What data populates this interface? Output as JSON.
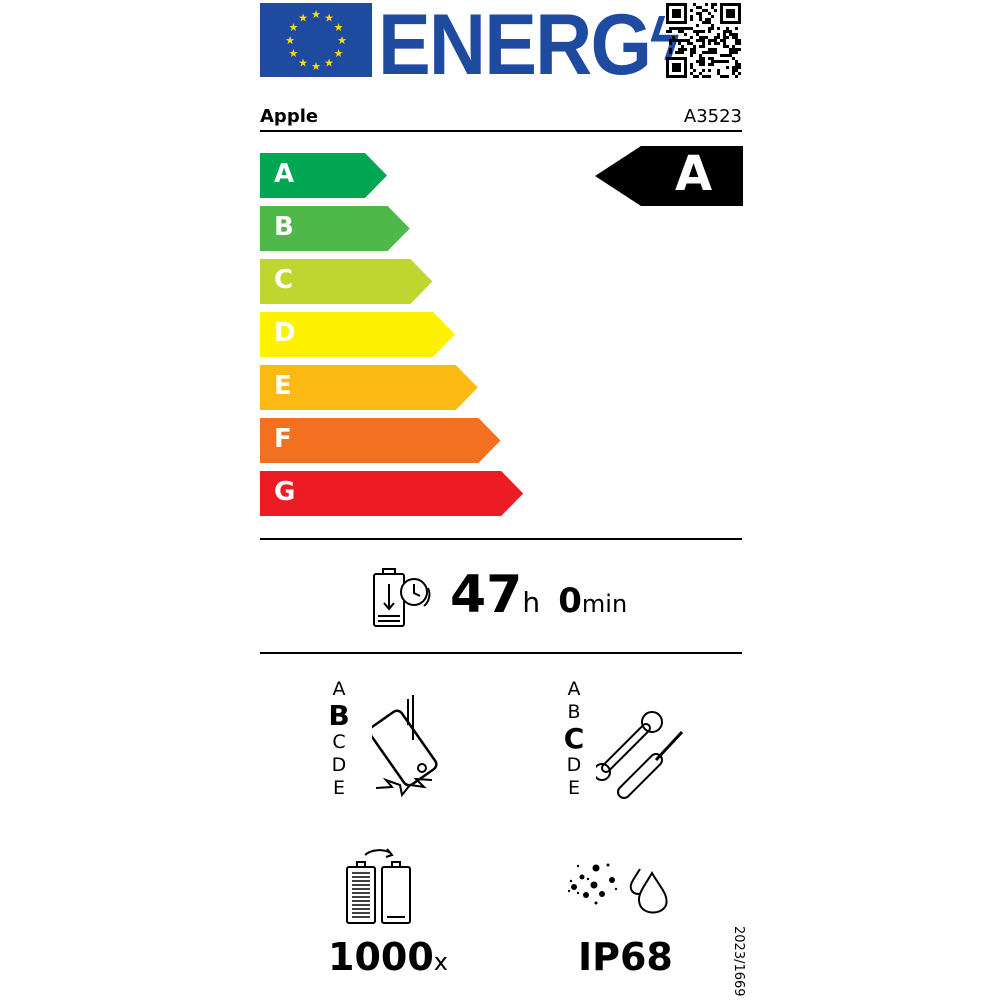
{
  "header": {
    "title": "ENERG",
    "flag_icon": "eu-flag-icon",
    "qr_icon": "qr-code-icon"
  },
  "supplier": "Apple",
  "model": "A3523",
  "scale": {
    "classes": [
      {
        "label": "A",
        "color": "#00a651"
      },
      {
        "label": "B",
        "color": "#50b848"
      },
      {
        "label": "C",
        "color": "#bfd630"
      },
      {
        "label": "D",
        "color": "#fff200"
      },
      {
        "label": "E",
        "color": "#fdb913"
      },
      {
        "label": "F",
        "color": "#f37021"
      },
      {
        "label": "G",
        "color": "#ed1c24"
      }
    ],
    "rating": "A"
  },
  "battery_endurance": {
    "hours": "47",
    "hours_unit": "h",
    "minutes": "0",
    "minutes_unit": "min"
  },
  "drop_resistance": {
    "classes": [
      "A",
      "B",
      "C",
      "D",
      "E"
    ],
    "selected": "B"
  },
  "repairability": {
    "classes": [
      "A",
      "B",
      "C",
      "D",
      "E"
    ],
    "selected": "C"
  },
  "battery_cycles": {
    "value": "1000",
    "unit": "x"
  },
  "ingress_protection": "IP68",
  "regulation": "2023/1669"
}
